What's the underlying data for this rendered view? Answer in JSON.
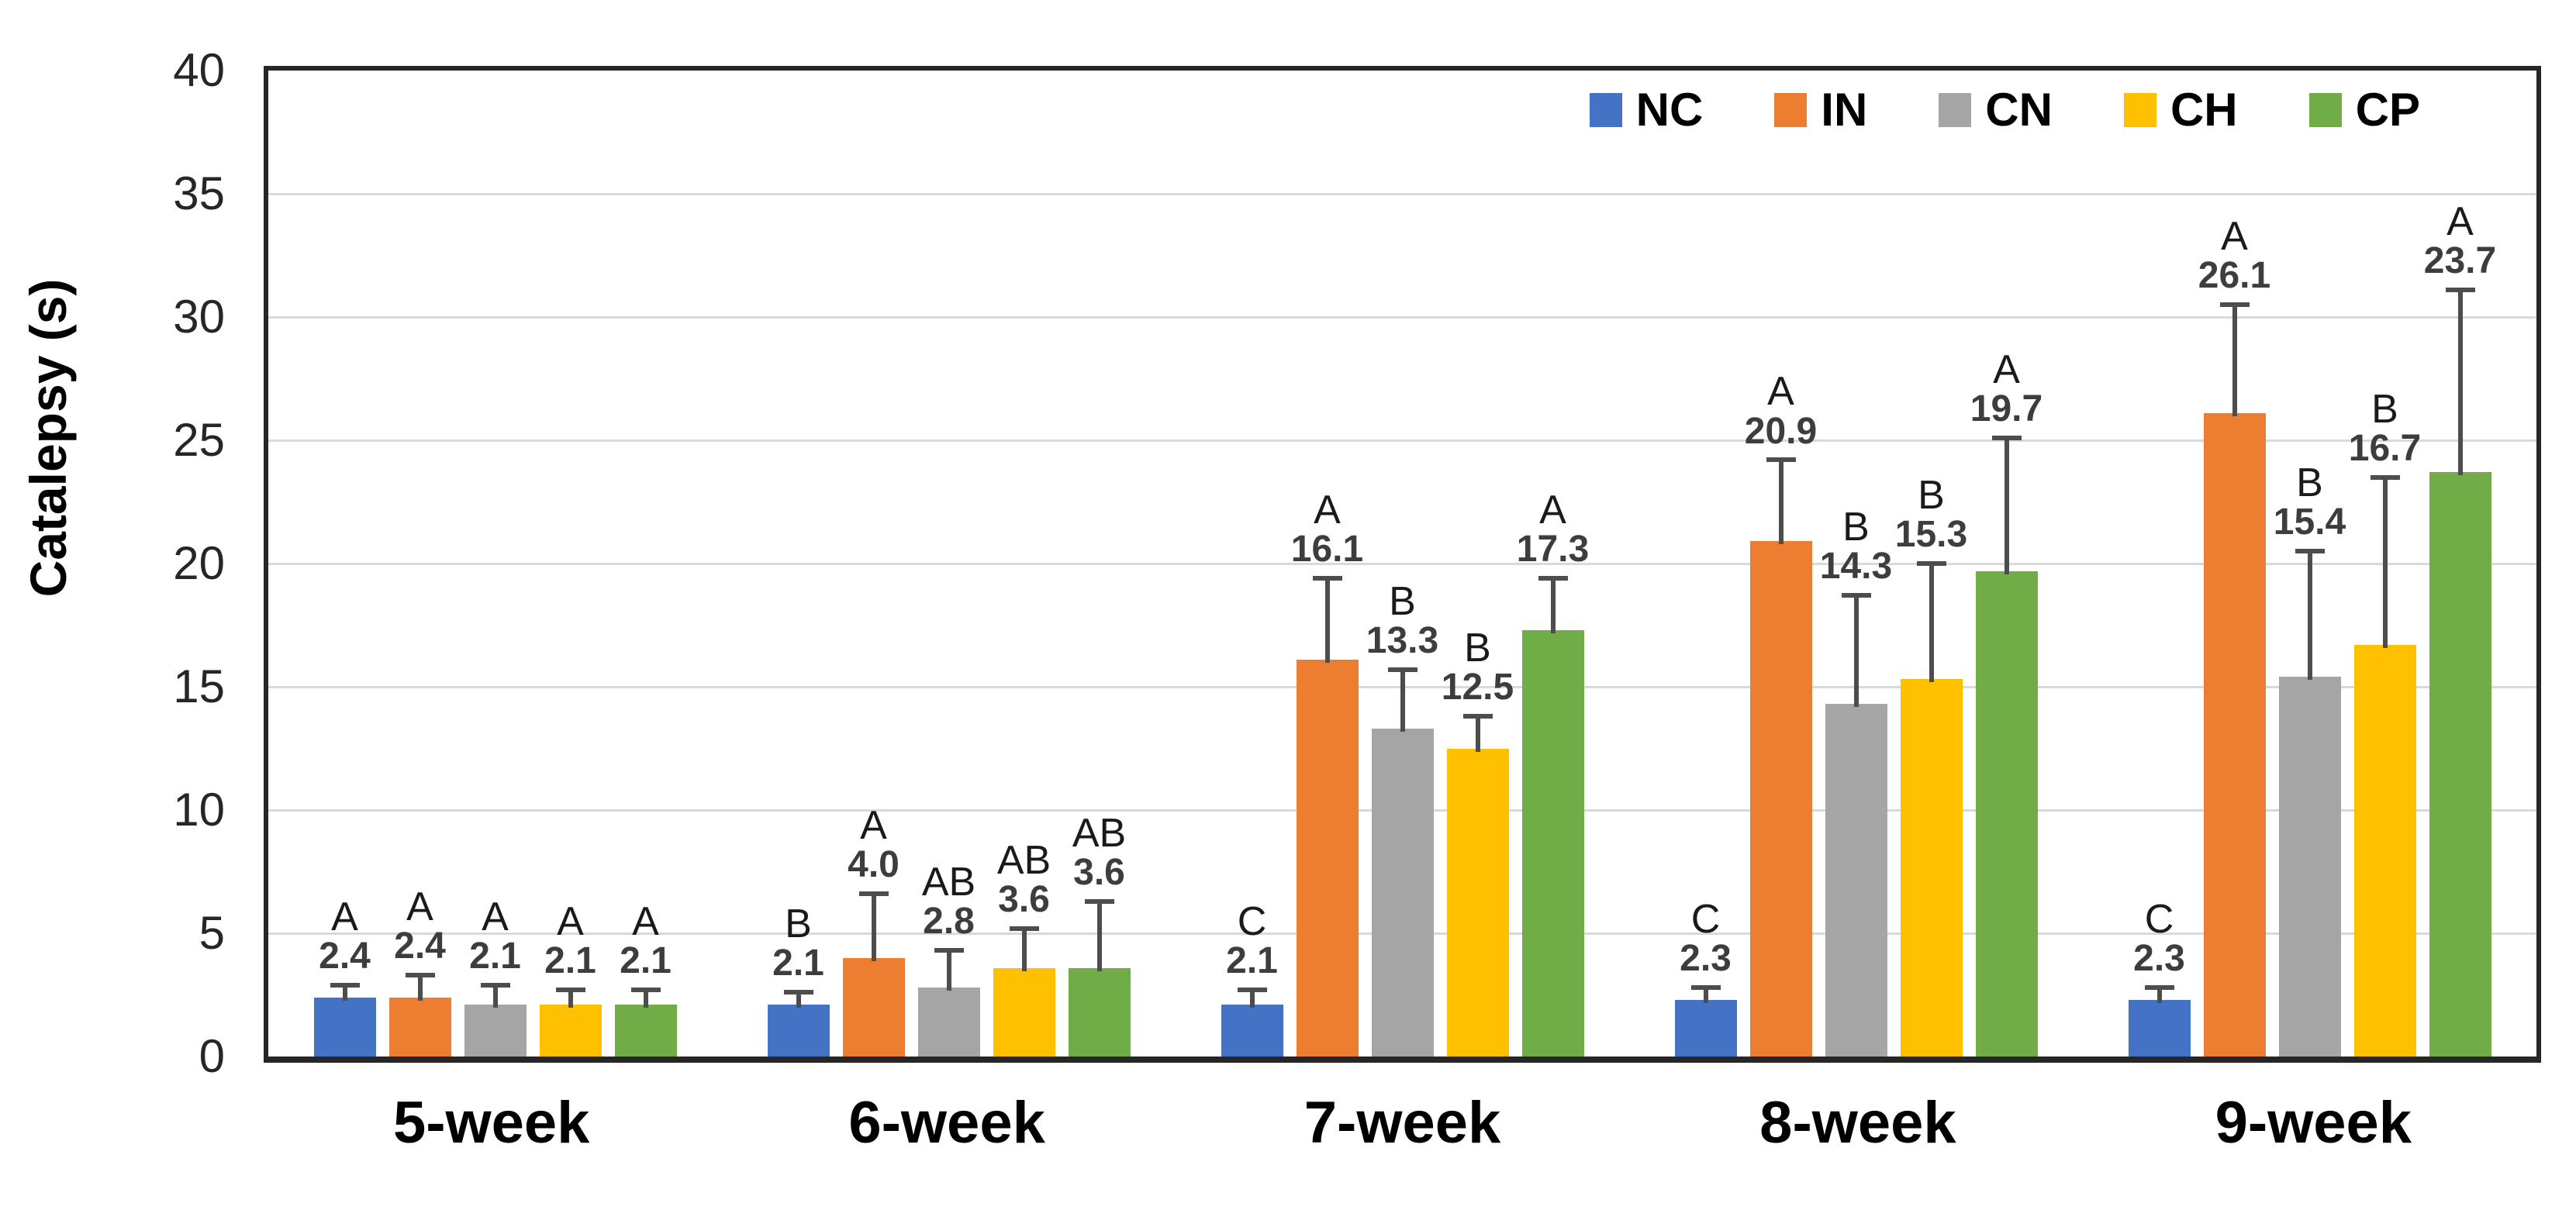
{
  "chart_data": {
    "type": "bar",
    "title": "",
    "ylabel": "Catalepsy (s)",
    "xlabel": "",
    "ylim": [
      0,
      40
    ],
    "yticks": [
      0,
      5,
      10,
      15,
      20,
      25,
      30,
      35,
      40
    ],
    "grid": "horizontal",
    "legend_position": "top-right-inside",
    "categories": [
      "5-week",
      "6-week",
      "7-week",
      "8-week",
      "9-week"
    ],
    "series": [
      {
        "name": "NC",
        "color": "#4472C4",
        "values": [
          2.4,
          2.1,
          2.1,
          2.3,
          2.3
        ],
        "errors_plus": [
          0.5,
          0.5,
          0.6,
          0.5,
          0.5
        ],
        "sig_letters": [
          "A",
          "B",
          "C",
          "C",
          "C"
        ]
      },
      {
        "name": "IN",
        "color": "#ED7D31",
        "values": [
          2.4,
          4.0,
          16.1,
          20.9,
          26.1
        ],
        "errors_plus": [
          0.9,
          2.6,
          3.3,
          3.3,
          4.4
        ],
        "sig_letters": [
          "A",
          "A",
          "A",
          "A",
          "A"
        ]
      },
      {
        "name": "CN",
        "color": "#A5A5A5",
        "values": [
          2.1,
          2.8,
          13.3,
          14.3,
          15.4
        ],
        "errors_plus": [
          0.8,
          1.5,
          2.4,
          4.4,
          5.1
        ],
        "sig_letters": [
          "A",
          "AB",
          "B",
          "B",
          "B"
        ]
      },
      {
        "name": "CH",
        "color": "#FFC000",
        "values": [
          2.1,
          3.6,
          12.5,
          15.3,
          16.7
        ],
        "errors_plus": [
          0.6,
          1.6,
          1.3,
          4.7,
          6.8
        ],
        "sig_letters": [
          "A",
          "AB",
          "B",
          "B",
          "B"
        ]
      },
      {
        "name": "CP",
        "color": "#70AD47",
        "values": [
          2.1,
          3.6,
          17.3,
          19.7,
          23.7
        ],
        "errors_plus": [
          0.6,
          2.7,
          2.1,
          5.4,
          7.4
        ],
        "sig_letters": [
          "A",
          "AB",
          "A",
          "A",
          "A"
        ]
      }
    ],
    "value_label_decimals": 1
  }
}
